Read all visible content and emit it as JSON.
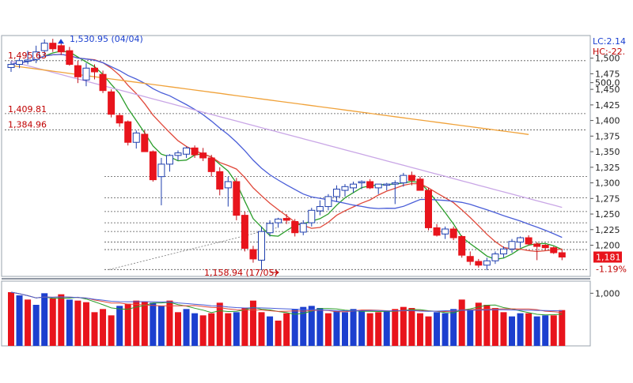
{
  "chart_data": [
    {
      "type": "candlestick",
      "name_label": "",
      "y_axis": {
        "ticks": [
          "1,500",
          "1,475",
          "1,450",
          "1,425",
          "1,400",
          "1,375",
          "1,350",
          "1,325",
          "1,300",
          "1,275",
          "1,250",
          "1,225",
          "1,200"
        ],
        "range": [
          1150,
          1535
        ]
      },
      "top_right_labels": {
        "lc": "LC:2.14",
        "hc": "HC:-22."
      },
      "price_annotations": [
        {
          "text": "1,495.63",
          "value": 1495.63,
          "color": "#c00000"
        },
        {
          "text": "1,409.81",
          "value": 1409.81,
          "color": "#c00000"
        },
        {
          "text": "1,384.96",
          "value": 1384.96,
          "color": "#c00000"
        }
      ],
      "high_marker": {
        "text": "1,530.95 (04/04)",
        "value": 1530.95,
        "color": "#1a3fd0"
      },
      "low_marker": {
        "text": "1,158.94 (17/05)",
        "value": 1158.94,
        "color": "#c00000"
      },
      "last_price": {
        "text": "1,181",
        "value": 1181
      },
      "last_change": {
        "text": "-1.19%",
        "color": "#c00000"
      },
      "reference_levels": [
        1496,
        1411,
        1385,
        1310,
        1276,
        1254,
        1236,
        1222,
        1205,
        1193,
        1161
      ],
      "candles": [
        [
          1485,
          1495,
          1478,
          1490
        ],
        [
          1490,
          1500,
          1484,
          1496
        ],
        [
          1495,
          1512,
          1490,
          1497
        ],
        [
          1498,
          1520,
          1492,
          1510
        ],
        [
          1512,
          1530,
          1506,
          1524
        ],
        [
          1524,
          1531,
          1510,
          1515
        ],
        [
          1520,
          1528,
          1505,
          1510
        ],
        [
          1512,
          1518,
          1488,
          1490
        ],
        [
          1488,
          1496,
          1460,
          1470
        ],
        [
          1465,
          1492,
          1455,
          1484
        ],
        [
          1484,
          1490,
          1466,
          1478
        ],
        [
          1474,
          1480,
          1444,
          1448
        ],
        [
          1446,
          1450,
          1405,
          1410
        ],
        [
          1408,
          1412,
          1390,
          1396
        ],
        [
          1398,
          1400,
          1360,
          1365
        ],
        [
          1365,
          1384,
          1355,
          1380
        ],
        [
          1378,
          1384,
          1350,
          1350
        ],
        [
          1350,
          1352,
          1302,
          1305
        ],
        [
          1310,
          1340,
          1264,
          1330
        ],
        [
          1330,
          1346,
          1318,
          1344
        ],
        [
          1344,
          1352,
          1336,
          1348
        ],
        [
          1346,
          1358,
          1340,
          1356
        ],
        [
          1356,
          1360,
          1340,
          1345
        ],
        [
          1348,
          1356,
          1335,
          1340
        ],
        [
          1340,
          1345,
          1310,
          1318
        ],
        [
          1318,
          1325,
          1280,
          1290
        ],
        [
          1292,
          1310,
          1262,
          1302
        ],
        [
          1302,
          1308,
          1240,
          1248
        ],
        [
          1248,
          1254,
          1190,
          1195
        ],
        [
          1193,
          1199,
          1172,
          1178
        ],
        [
          1176,
          1230,
          1160,
          1222
        ],
        [
          1220,
          1240,
          1214,
          1235
        ],
        [
          1236,
          1244,
          1228,
          1242
        ],
        [
          1243,
          1250,
          1234,
          1240
        ],
        [
          1238,
          1242,
          1214,
          1220
        ],
        [
          1221,
          1240,
          1216,
          1235
        ],
        [
          1236,
          1260,
          1230,
          1256
        ],
        [
          1255,
          1272,
          1248,
          1262
        ],
        [
          1262,
          1282,
          1256,
          1278
        ],
        [
          1278,
          1296,
          1270,
          1290
        ],
        [
          1288,
          1298,
          1278,
          1294
        ],
        [
          1292,
          1302,
          1284,
          1298
        ],
        [
          1300,
          1304,
          1290,
          1302
        ],
        [
          1302,
          1306,
          1290,
          1292
        ],
        [
          1292,
          1298,
          1282,
          1298
        ],
        [
          1297,
          1300,
          1288,
          1298
        ],
        [
          1298,
          1304,
          1266,
          1300
        ],
        [
          1300,
          1316,
          1294,
          1312
        ],
        [
          1312,
          1318,
          1296,
          1304
        ],
        [
          1306,
          1310,
          1290,
          1288
        ],
        [
          1288,
          1292,
          1224,
          1228
        ],
        [
          1228,
          1234,
          1214,
          1216
        ],
        [
          1218,
          1230,
          1210,
          1226
        ],
        [
          1226,
          1230,
          1208,
          1212
        ],
        [
          1214,
          1216,
          1180,
          1184
        ],
        [
          1182,
          1190,
          1168,
          1174
        ],
        [
          1174,
          1178,
          1164,
          1168
        ],
        [
          1168,
          1180,
          1160,
          1175
        ],
        [
          1175,
          1190,
          1170,
          1186
        ],
        [
          1186,
          1198,
          1180,
          1194
        ],
        [
          1194,
          1210,
          1188,
          1206
        ],
        [
          1205,
          1214,
          1196,
          1212
        ],
        [
          1212,
          1216,
          1200,
          1202
        ],
        [
          1202,
          1205,
          1176,
          1198
        ],
        [
          1200,
          1202,
          1192,
          1196
        ],
        [
          1196,
          1198,
          1186,
          1188
        ],
        [
          1188,
          1194,
          1176,
          1181
        ]
      ],
      "volume": {
        "ticks": [
          "1,000",
          "500,0"
        ],
        "range": [
          0,
          1200
        ],
        "values": [
          [
            1020,
            "r"
          ],
          [
            960,
            "b"
          ],
          [
            880,
            "r"
          ],
          [
            780,
            "b"
          ],
          [
            1000,
            "b"
          ],
          [
            900,
            "r"
          ],
          [
            980,
            "r"
          ],
          [
            880,
            "b"
          ],
          [
            860,
            "r"
          ],
          [
            830,
            "r"
          ],
          [
            640,
            "r"
          ],
          [
            700,
            "r"
          ],
          [
            580,
            "r"
          ],
          [
            760,
            "b"
          ],
          [
            800,
            "r"
          ],
          [
            860,
            "r"
          ],
          [
            840,
            "r"
          ],
          [
            820,
            "b"
          ],
          [
            760,
            "b"
          ],
          [
            860,
            "r"
          ],
          [
            640,
            "r"
          ],
          [
            700,
            "b"
          ],
          [
            620,
            "b"
          ],
          [
            580,
            "r"
          ],
          [
            620,
            "r"
          ],
          [
            820,
            "r"
          ],
          [
            620,
            "r"
          ],
          [
            640,
            "b"
          ],
          [
            720,
            "r"
          ],
          [
            860,
            "r"
          ],
          [
            640,
            "r"
          ],
          [
            560,
            "b"
          ],
          [
            480,
            "r"
          ],
          [
            620,
            "r"
          ],
          [
            700,
            "b"
          ],
          [
            740,
            "b"
          ],
          [
            760,
            "b"
          ],
          [
            720,
            "b"
          ],
          [
            620,
            "r"
          ],
          [
            660,
            "b"
          ],
          [
            640,
            "b"
          ],
          [
            700,
            "b"
          ],
          [
            660,
            "b"
          ],
          [
            620,
            "r"
          ],
          [
            640,
            "r"
          ],
          [
            660,
            "b"
          ],
          [
            700,
            "r"
          ],
          [
            740,
            "r"
          ],
          [
            720,
            "r"
          ],
          [
            620,
            "r"
          ],
          [
            560,
            "r"
          ],
          [
            640,
            "b"
          ],
          [
            620,
            "b"
          ],
          [
            700,
            "b"
          ],
          [
            880,
            "r"
          ],
          [
            680,
            "b"
          ],
          [
            820,
            "r"
          ],
          [
            780,
            "r"
          ],
          [
            720,
            "r"
          ],
          [
            640,
            "r"
          ],
          [
            560,
            "b"
          ],
          [
            620,
            "b"
          ],
          [
            620,
            "r"
          ],
          [
            560,
            "b"
          ],
          [
            580,
            "b"
          ],
          [
            580,
            "r"
          ],
          [
            680,
            "r"
          ]
        ]
      }
    }
  ]
}
